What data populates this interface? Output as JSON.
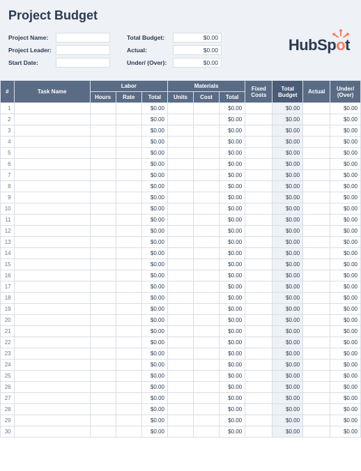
{
  "title": "Project Budget",
  "meta": {
    "left": [
      {
        "label": "Project Name:",
        "value": ""
      },
      {
        "label": "Project Leader:",
        "value": ""
      },
      {
        "label": "Start Date:",
        "value": ""
      }
    ],
    "mid": [
      {
        "label": "Total Budget:",
        "value": "$0.00"
      },
      {
        "label": "Actual:",
        "value": "$0.00"
      },
      {
        "label": "Under/ (Over):",
        "value": "$0.00"
      }
    ]
  },
  "logo": {
    "text_before": "HubSp",
    "text_after": "t",
    "accent": "o",
    "brand_color": "#ff7a59"
  },
  "table": {
    "headers_top": {
      "num": "#",
      "task": "Task Name",
      "labor": "Labor",
      "materials": "Materials",
      "fixed": "Fixed Costs",
      "totbud": "Total Budget",
      "actual": "Actual",
      "under": "Under/ (Over)"
    },
    "headers_sub": {
      "hours": "Hours",
      "rate": "Rate",
      "ltotal": "Total",
      "units": "Units",
      "cost": "Cost",
      "mtotal": "Total"
    },
    "row_count": 30,
    "cell_default": "$0.00",
    "colors": {
      "header_bg": "#5a6b85",
      "header_bg_dark": "#4a5b75",
      "border": "#d9dee6",
      "page_bg": "#eef1f5",
      "shaded_col_bg": "#eef1f5"
    }
  }
}
